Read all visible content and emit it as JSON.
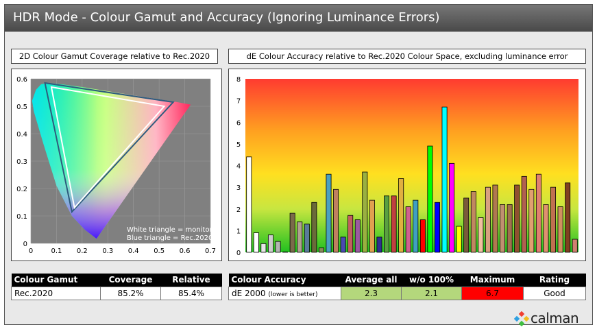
{
  "header": {
    "title": "HDR Mode - Colour Gamut and Accuracy (Ignoring Luminance Errors)"
  },
  "gamut_panel": {
    "title": "2D Colour Gamut Coverage relative to Rec.2020",
    "legend_line1": "White triangle = monitor",
    "legend_line2": "Blue triangle = Rec.2020"
  },
  "accuracy_panel": {
    "title": "dE Colour Accuracy relative to Rec.2020 Colour Space, excluding luminance error"
  },
  "gamut_table": {
    "headers": [
      "Colour Gamut",
      "Coverage",
      "Relative"
    ],
    "row": [
      "Rec.2020",
      "85.2%",
      "85.4%"
    ]
  },
  "accuracy_table": {
    "headers": [
      "Colour Accuracy",
      "Average all",
      "w/o 100%",
      "Maximum",
      "Rating"
    ],
    "row_label": "dE 2000",
    "row_note": "(lower is better)",
    "values": [
      "2.3",
      "2.1",
      "6.7",
      "Good"
    ],
    "colors": {
      "average": "#b4d77c",
      "without100": "#b4d77c",
      "maximum": "#ff0000",
      "rating": "#ffffff"
    }
  },
  "logo": {
    "text": "calman"
  },
  "chart_data": [
    {
      "type": "scatter",
      "title": "2D Colour Gamut Coverage relative to Rec.2020",
      "xlim": [
        0,
        0.7
      ],
      "ylim": [
        0,
        0.6
      ],
      "xticks": [
        "0",
        "0.1",
        "0.2",
        "0.3",
        "0.4",
        "0.5",
        "0.6",
        "0.7"
      ],
      "yticks": [
        "0",
        "0.1",
        "0.2",
        "0.3",
        "0.4",
        "0.5",
        "0.6"
      ],
      "grid": true,
      "series": [
        {
          "name": "White triangle = monitor",
          "color": "#ffffff",
          "points": [
            [
              0.08,
              0.57
            ],
            [
              0.52,
              0.5
            ],
            [
              0.17,
              0.13
            ]
          ]
        },
        {
          "name": "Blue triangle = Rec.2020",
          "color": "#2e5b7e",
          "points": [
            [
              0.055,
              0.585
            ],
            [
              0.555,
              0.515
            ],
            [
              0.16,
              0.115
            ]
          ]
        }
      ]
    },
    {
      "type": "bar",
      "title": "dE Colour Accuracy relative to Rec.2020 Colour Space, excluding luminance error",
      "ylim": [
        0,
        8
      ],
      "yticks": [
        "0",
        "1",
        "2",
        "3",
        "4",
        "5",
        "6",
        "7",
        "8"
      ],
      "values": [
        4.4,
        0.9,
        0.4,
        0.8,
        0.5,
        0.0,
        1.8,
        1.4,
        1.3,
        2.3,
        0.2,
        3.6,
        2.9,
        0.7,
        1.7,
        1.5,
        3.7,
        2.4,
        0.7,
        2.6,
        2.6,
        3.4,
        2.1,
        2.4,
        1.5,
        4.9,
        2.3,
        6.7,
        4.1,
        1.2,
        2.5,
        2.8,
        1.6,
        3.0,
        3.1,
        2.2,
        2.2,
        3.1,
        3.5,
        2.9,
        3.6,
        2.2,
        3.0,
        2.1,
        3.2,
        0.6
      ],
      "colors": [
        "#ffffff",
        "#ffffff",
        "#e6e6e6",
        "#cccccc",
        "#b3b3b3",
        "#999999",
        "#7a6a4a",
        "#b0a090",
        "#5a7a9a",
        "#6a6a3a",
        "#8a8a5a",
        "#4aa0c0",
        "#c08060",
        "#4a4ab0",
        "#c06060",
        "#9a5aa0",
        "#9ab040",
        "#e0a050",
        "#303090",
        "#5aa040",
        "#c04040",
        "#e0b040",
        "#d06090",
        "#40a0c0",
        "#ff0000",
        "#00ff00",
        "#0000ff",
        "#00ffff",
        "#ff00ff",
        "#ffff00",
        "#7a5a3a",
        "#c08860",
        "#f0c0a0",
        "#d8a080",
        "#b07850",
        "#c09070",
        "#a07050",
        "#905030",
        "#b06050",
        "#e0a070",
        "#e08070",
        "#e09070",
        "#c07050",
        "#d09060",
        "#804020",
        "#d08070"
      ]
    }
  ]
}
